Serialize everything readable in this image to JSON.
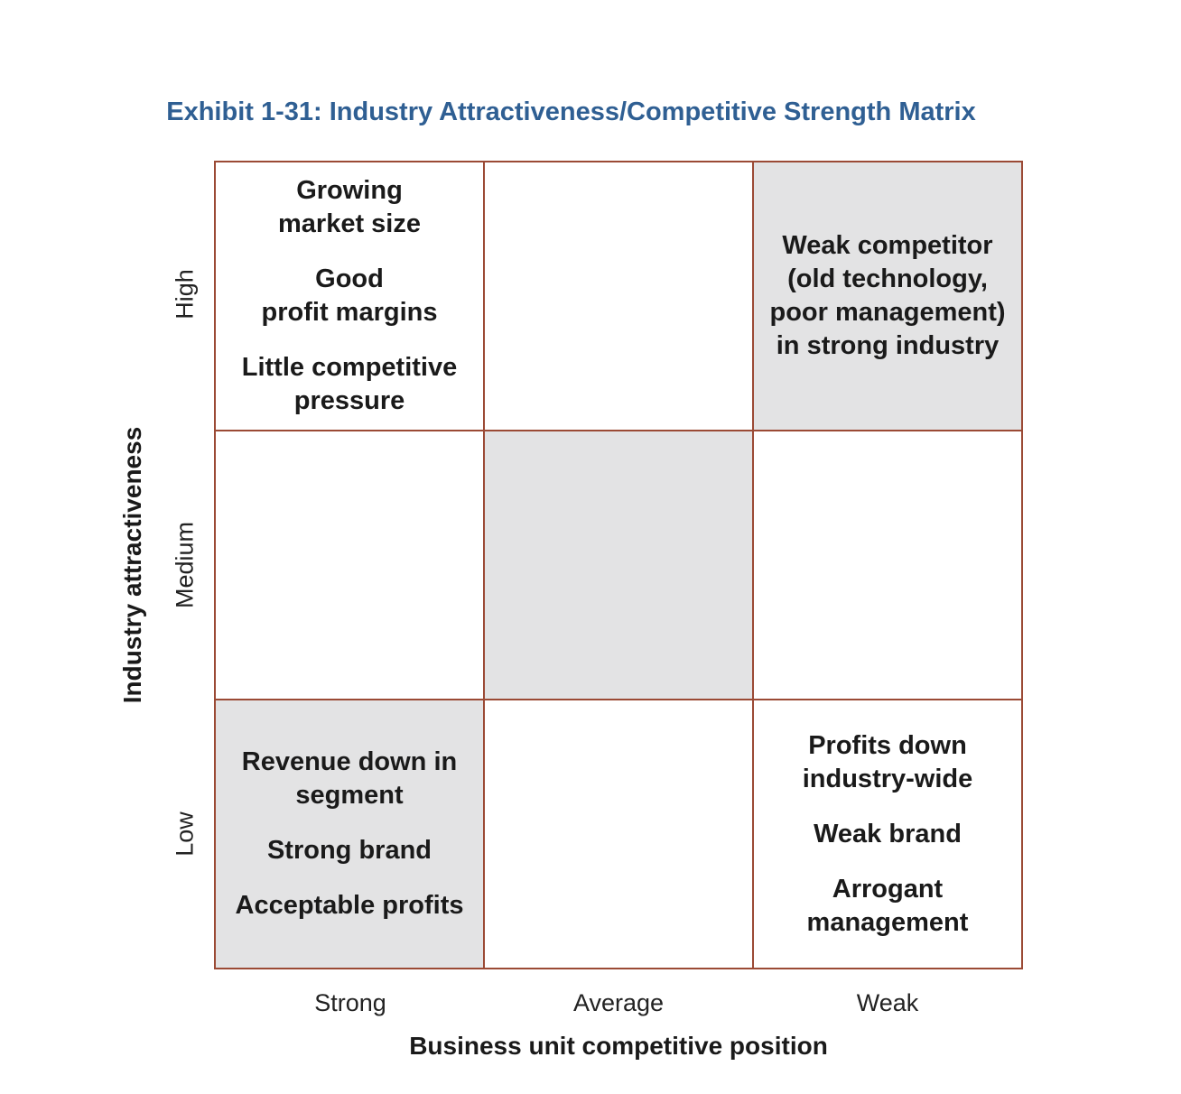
{
  "title": "Exhibit 1-31: Industry Attractiveness/Competitive Strength Matrix",
  "y_axis": {
    "title": "Industry attractiveness",
    "levels": [
      "High",
      "Medium",
      "Low"
    ]
  },
  "x_axis": {
    "title": "Business unit competitive position",
    "levels": [
      "Strong",
      "Average",
      "Weak"
    ]
  },
  "matrix": {
    "shade_color": "#e3e3e4",
    "border_color": "#9b4a35",
    "cells": [
      {
        "row": "High",
        "col": "Strong",
        "shaded": false,
        "items": [
          "Growing\nmarket size",
          "Good\nprofit margins",
          "Little competitive\npressure"
        ]
      },
      {
        "row": "High",
        "col": "Average",
        "shaded": false,
        "items": []
      },
      {
        "row": "High",
        "col": "Weak",
        "shaded": true,
        "items": [
          "Weak competitor\n(old technology,\npoor management)\nin strong industry"
        ]
      },
      {
        "row": "Medium",
        "col": "Strong",
        "shaded": false,
        "items": []
      },
      {
        "row": "Medium",
        "col": "Average",
        "shaded": true,
        "items": []
      },
      {
        "row": "Medium",
        "col": "Weak",
        "shaded": false,
        "items": []
      },
      {
        "row": "Low",
        "col": "Strong",
        "shaded": true,
        "items": [
          "Revenue down in\nsegment",
          "Strong brand",
          "Acceptable profits"
        ]
      },
      {
        "row": "Low",
        "col": "Average",
        "shaded": false,
        "items": []
      },
      {
        "row": "Low",
        "col": "Weak",
        "shaded": false,
        "items": [
          "Profits down\nindustry-wide",
          "Weak brand",
          "Arrogant\nmanagement"
        ]
      }
    ]
  }
}
